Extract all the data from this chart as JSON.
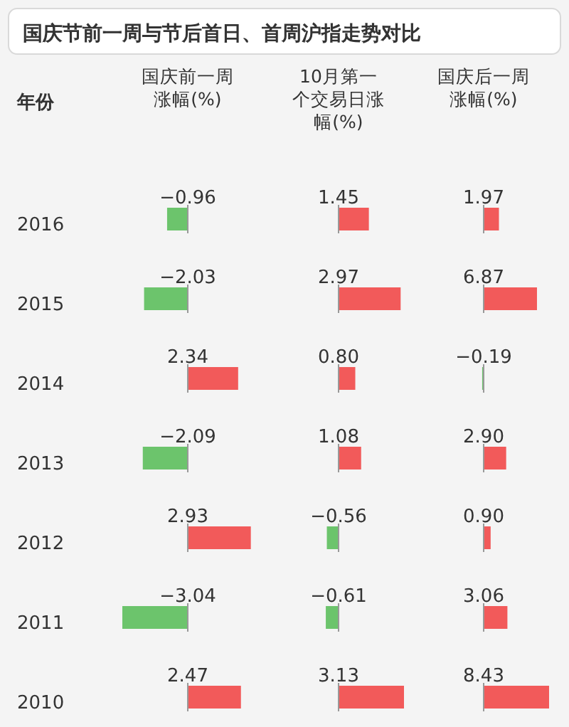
{
  "chart_data": [
    {
      "type": "bar",
      "orientation": "horizontal",
      "tick_labels": "y",
      "title": "国庆节前一周与节后首日、首周沪指走势对比",
      "subtitle": "国庆前一周涨幅(%)",
      "ylabel": "年份",
      "categories": [
        "2016",
        "2015",
        "2014",
        "2013",
        "2012",
        "2011",
        "2010"
      ],
      "values": [
        -0.96,
        -2.03,
        2.34,
        -2.09,
        2.93,
        -3.04,
        2.47
      ],
      "colors": [
        "#6cc46c",
        "#6cc46c",
        "#f25a5a",
        "#6cc46c",
        "#f25a5a",
        "#6cc46c",
        "#f25a5a"
      ],
      "value_labels": [
        "−0.96",
        "−2.03",
        "2.34",
        "−2.09",
        "2.93",
        "−3.04",
        "2.47"
      ]
    },
    {
      "type": "bar",
      "orientation": "horizontal",
      "tick_labels": false,
      "subtitle": "10月第一个交易日涨幅(%)",
      "categories": [
        "2016",
        "2015",
        "2014",
        "2013",
        "2012",
        "2011",
        "2010"
      ],
      "values": [
        1.45,
        2.97,
        0.8,
        1.08,
        -0.56,
        -0.61,
        3.13
      ],
      "colors": [
        "#f25a5a",
        "#f25a5a",
        "#f25a5a",
        "#f25a5a",
        "#6cc46c",
        "#6cc46c",
        "#f25a5a"
      ],
      "value_labels": [
        "1.45",
        "2.97",
        "0.80",
        "1.08",
        "−0.56",
        "−0.61",
        "3.13"
      ]
    },
    {
      "type": "bar",
      "orientation": "horizontal",
      "tick_labels": false,
      "subtitle": "国庆后一周涨幅(%)",
      "categories": [
        "2016",
        "2015",
        "2014",
        "2013",
        "2012",
        "2011",
        "2010"
      ],
      "values": [
        1.97,
        6.87,
        -0.19,
        2.9,
        0.9,
        3.06,
        8.43
      ],
      "colors": [
        "#f25a5a",
        "#f25a5a",
        "#6cc46c",
        "#f25a5a",
        "#f25a5a",
        "#f25a5a",
        "#f25a5a"
      ],
      "value_labels": [
        "1.97",
        "6.87",
        "−0.19",
        "2.90",
        "0.90",
        "3.06",
        "8.43"
      ]
    }
  ]
}
